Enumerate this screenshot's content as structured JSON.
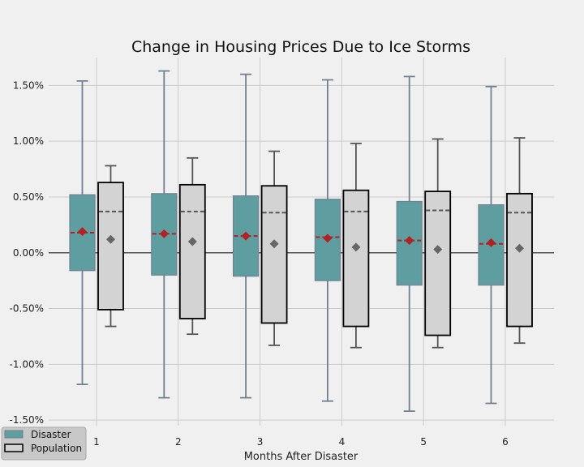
{
  "chart_data": {
    "type": "box",
    "title": "Change in Housing Prices Due to Ice Storms",
    "xlabel": "Months After Disaster",
    "ylabel": "",
    "categories": [
      "1",
      "2",
      "3",
      "4",
      "5",
      "6"
    ],
    "ylim": [
      -1.55,
      1.75
    ],
    "yticks": [
      -1.5,
      -1.0,
      -0.5,
      0.0,
      0.5,
      1.0,
      1.5
    ],
    "ytick_labels": [
      "-1.50%",
      "-1.00%",
      "-0.50%",
      "0.00%",
      "0.50%",
      "1.00%",
      "1.50%"
    ],
    "grid": true,
    "legend_position": "bottom-left",
    "series": [
      {
        "name": "Disaster",
        "color": "#5f9ea0",
        "edge_color": "#708090",
        "median_color": "#b22222",
        "mean_color": "#b22222",
        "boxes": [
          {
            "whisker_low": -1.18,
            "q1": -0.16,
            "median": 0.18,
            "mean": 0.19,
            "q3": 0.52,
            "whisker_high": 1.54
          },
          {
            "whisker_low": -1.3,
            "q1": -0.2,
            "median": 0.17,
            "mean": 0.17,
            "q3": 0.53,
            "whisker_high": 1.63
          },
          {
            "whisker_low": -1.3,
            "q1": -0.21,
            "median": 0.15,
            "mean": 0.15,
            "q3": 0.51,
            "whisker_high": 1.6
          },
          {
            "whisker_low": -1.33,
            "q1": -0.25,
            "median": 0.14,
            "mean": 0.13,
            "q3": 0.48,
            "whisker_high": 1.55
          },
          {
            "whisker_low": -1.42,
            "q1": -0.29,
            "median": 0.11,
            "mean": 0.11,
            "q3": 0.46,
            "whisker_high": 1.58
          },
          {
            "whisker_low": -1.35,
            "q1": -0.29,
            "median": 0.08,
            "mean": 0.09,
            "q3": 0.43,
            "whisker_high": 1.49
          }
        ]
      },
      {
        "name": "Population",
        "color": "#d3d3d3",
        "edge_color": "#000000",
        "median_color": "#555555",
        "mean_color": "#666666",
        "boxes": [
          {
            "whisker_low": -0.66,
            "q1": -0.51,
            "median": 0.37,
            "mean": 0.12,
            "q3": 0.63,
            "whisker_high": 0.78
          },
          {
            "whisker_low": -0.73,
            "q1": -0.59,
            "median": 0.37,
            "mean": 0.1,
            "q3": 0.61,
            "whisker_high": 0.85
          },
          {
            "whisker_low": -0.83,
            "q1": -0.63,
            "median": 0.36,
            "mean": 0.08,
            "q3": 0.6,
            "whisker_high": 0.91
          },
          {
            "whisker_low": -0.85,
            "q1": -0.66,
            "median": 0.37,
            "mean": 0.05,
            "q3": 0.56,
            "whisker_high": 0.98
          },
          {
            "whisker_low": -0.85,
            "q1": -0.74,
            "median": 0.38,
            "mean": 0.03,
            "q3": 0.55,
            "whisker_high": 1.02
          },
          {
            "whisker_low": -0.81,
            "q1": -0.66,
            "median": 0.36,
            "mean": 0.04,
            "q3": 0.53,
            "whisker_high": 1.03
          }
        ]
      }
    ]
  }
}
